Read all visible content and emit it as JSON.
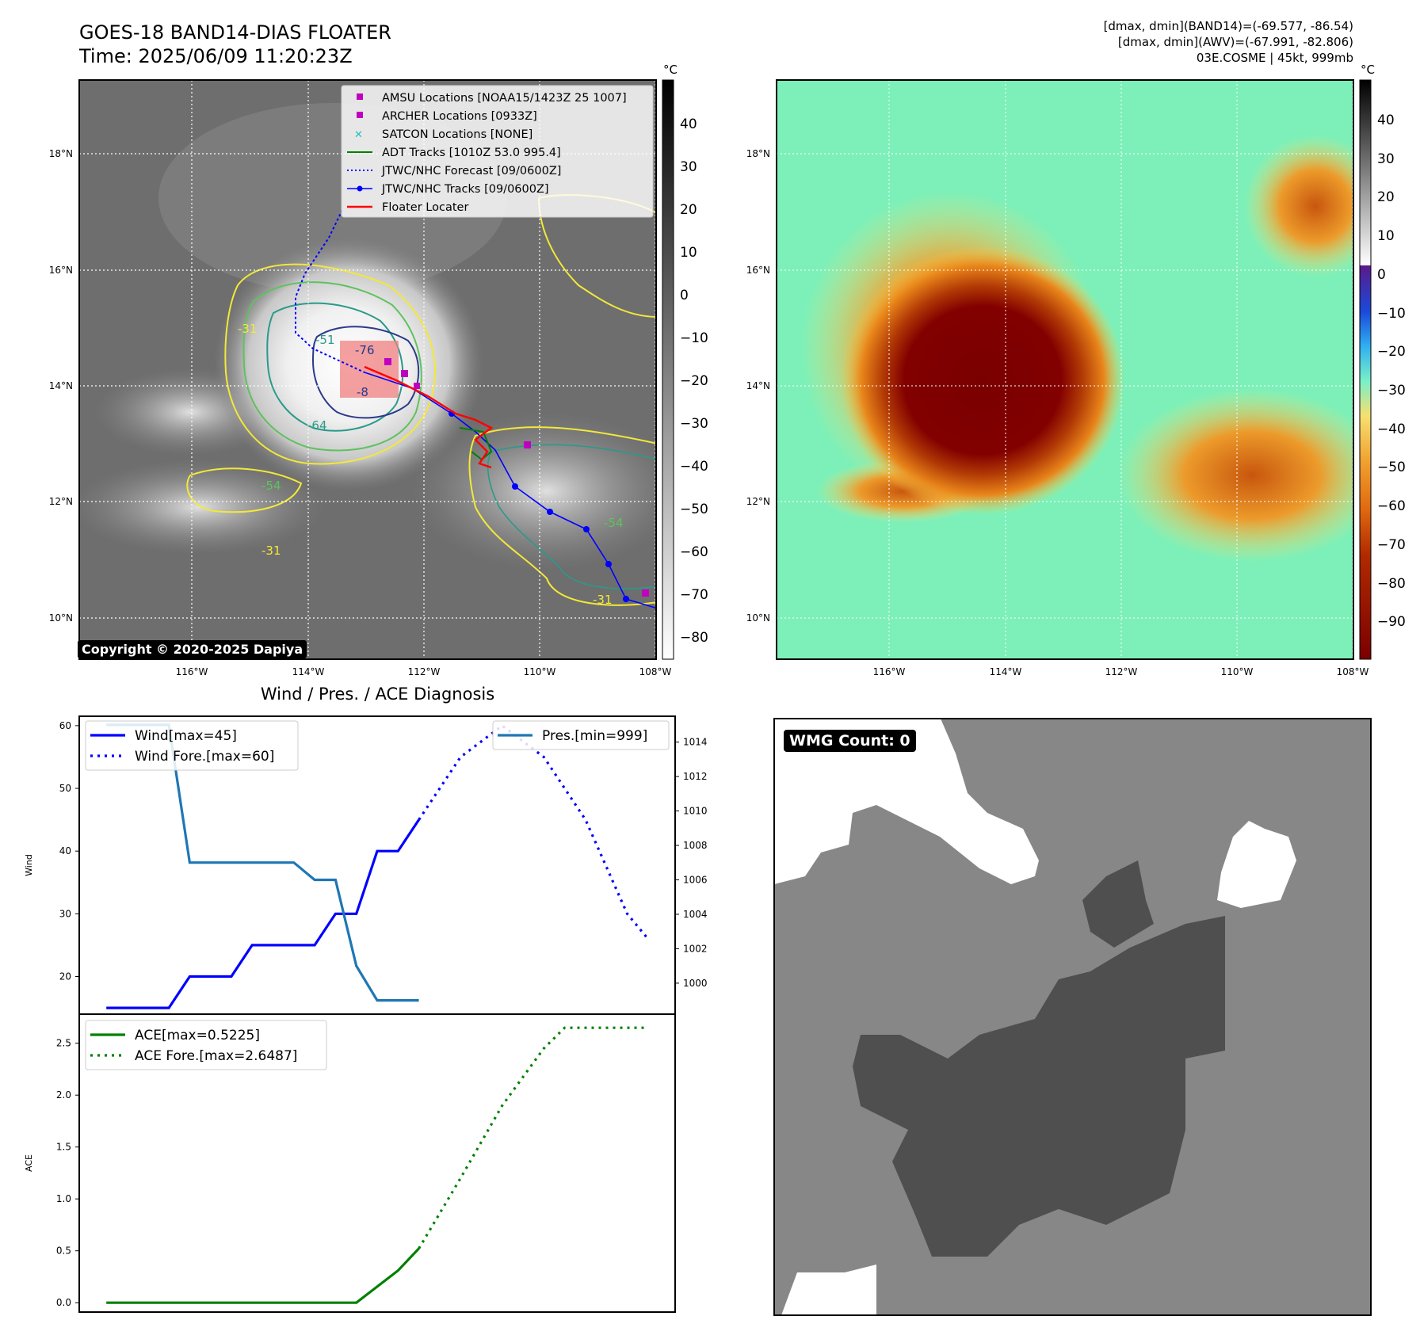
{
  "top_left": {
    "title_line1": "GOES-18 BAND14-DIAS FLOATER",
    "title_line2": "Time: 2025/06/09 11:20:23Z",
    "copyright": "Copyright © 2020-2025 Dapiya",
    "colorbar_unit": "°C",
    "colorbar_ticks": [
      "40",
      "30",
      "20",
      "10",
      "0",
      "−10",
      "−20",
      "−30",
      "−40",
      "−50",
      "−60",
      "−70",
      "−80"
    ],
    "lat_labels": [
      "18°N",
      "16°N",
      "14°N",
      "12°N",
      "10°N"
    ],
    "lon_labels": [
      "116°W",
      "114°W",
      "112°W",
      "110°W",
      "108°W"
    ],
    "contour_labels": [
      "-76",
      "-64",
      "-54",
      "-31",
      "-31",
      "-54",
      "-8",
      "-51",
      "-31",
      "-31",
      "-64",
      "-54",
      "-31"
    ],
    "legend": [
      {
        "label": "AMSU Locations [NOAA15/1423Z 25 1007]",
        "color": "#c000c0",
        "marker": "square"
      },
      {
        "label": "ARCHER Locations [0933Z]",
        "color": "#c000c0",
        "marker": "square"
      },
      {
        "label": "SATCON Locations [NONE]",
        "color": "#20c0c0",
        "marker": "x"
      },
      {
        "label": "ADT Tracks [1010Z 53.0 995.4]",
        "color": "#008000",
        "marker": "line"
      },
      {
        "label": "JTWC/NHC Forecast [09/0600Z]",
        "color": "#0000ff",
        "marker": "dotted"
      },
      {
        "label": "JTWC/NHC Tracks [09/0600Z]",
        "color": "#0000ff",
        "marker": "line-dot"
      },
      {
        "label": "Floater Locater",
        "color": "#ff0000",
        "marker": "line"
      }
    ]
  },
  "top_right": {
    "info_line1": "[dmax, dmin](BAND14)=(-69.577, -86.54)",
    "info_line2": "[dmax, dmin](AWV)=(-67.991, -82.806)",
    "info_line3": "03E.COSME | 45kt, 999mb",
    "colorbar_unit": "°C",
    "colorbar_ticks": [
      "40",
      "30",
      "20",
      "10",
      "0",
      "−10",
      "−20",
      "−30",
      "−40",
      "−50",
      "−60",
      "−70",
      "−80",
      "−90"
    ],
    "lat_labels": [
      "18°N",
      "16°N",
      "14°N",
      "12°N",
      "10°N"
    ],
    "lon_labels": [
      "116°W",
      "114°W",
      "112°W",
      "110°W",
      "108°W"
    ]
  },
  "diagnosis_title": "Wind / Pres. / ACE Diagnosis",
  "wmg_label": "WMG Count: 0",
  "chart_data": [
    {
      "type": "line",
      "panel": "wind-pressure",
      "ylabel": "Wind",
      "ylabel_right": "Pressure",
      "ylim": [
        14,
        61.5
      ],
      "y2lim": [
        998.2,
        1015.5
      ],
      "yticks": [
        20,
        30,
        40,
        50,
        60
      ],
      "y2ticks": [
        1000,
        1002,
        1004,
        1006,
        1008,
        1010,
        1012,
        1014
      ],
      "series": [
        {
          "name": "Wind[max=45]",
          "style": "solid",
          "color": "#0000ff",
          "axis": "left",
          "x": [
            0,
            3,
            4,
            6,
            7,
            10,
            11,
            12,
            13,
            14,
            15
          ],
          "y": [
            15,
            15,
            20,
            20,
            25,
            25,
            30,
            30,
            40,
            40,
            45
          ]
        },
        {
          "name": "Wind Fore.[max=60]",
          "style": "dotted",
          "color": "#0000ff",
          "axis": "left",
          "x": [
            15,
            17,
            19,
            21,
            23,
            25,
            26
          ],
          "y": [
            45,
            55,
            60,
            55,
            45,
            30,
            26
          ]
        },
        {
          "name": "Pres.[min=999]",
          "style": "solid",
          "color": "#1f77b4",
          "axis": "right",
          "x": [
            0,
            3,
            4,
            5,
            6,
            7,
            9,
            10,
            11,
            12,
            13,
            14,
            15
          ],
          "y": [
            1015,
            1015,
            1007,
            1007,
            1007,
            1007,
            1007,
            1006,
            1006,
            1001,
            999,
            999,
            999
          ]
        }
      ]
    },
    {
      "type": "line",
      "panel": "ace",
      "ylabel": "ACE",
      "ylim": [
        -0.09,
        2.78
      ],
      "yticks": [
        "0.0",
        "0.5",
        "1.0",
        "1.5",
        "2.0",
        "2.5"
      ],
      "series": [
        {
          "name": "ACE[max=0.5225]",
          "style": "solid",
          "color": "#008000",
          "x": [
            0,
            4,
            8,
            12,
            14,
            15
          ],
          "y": [
            0,
            0,
            0,
            0,
            0.31,
            0.5225
          ]
        },
        {
          "name": "ACE Fore.[max=2.6487]",
          "style": "dotted",
          "color": "#008000",
          "x": [
            15,
            17,
            19,
            21,
            22,
            23,
            26
          ],
          "y": [
            0.5225,
            1.2,
            1.9,
            2.45,
            2.6487,
            2.6487,
            2.6487
          ]
        }
      ]
    }
  ],
  "colors": {
    "jtwc_blue": "#0000ff",
    "pres_blue": "#1f77b4",
    "ace_green": "#008000",
    "floater_red": "#ff0000",
    "amsu_magenta": "#c000c0"
  }
}
